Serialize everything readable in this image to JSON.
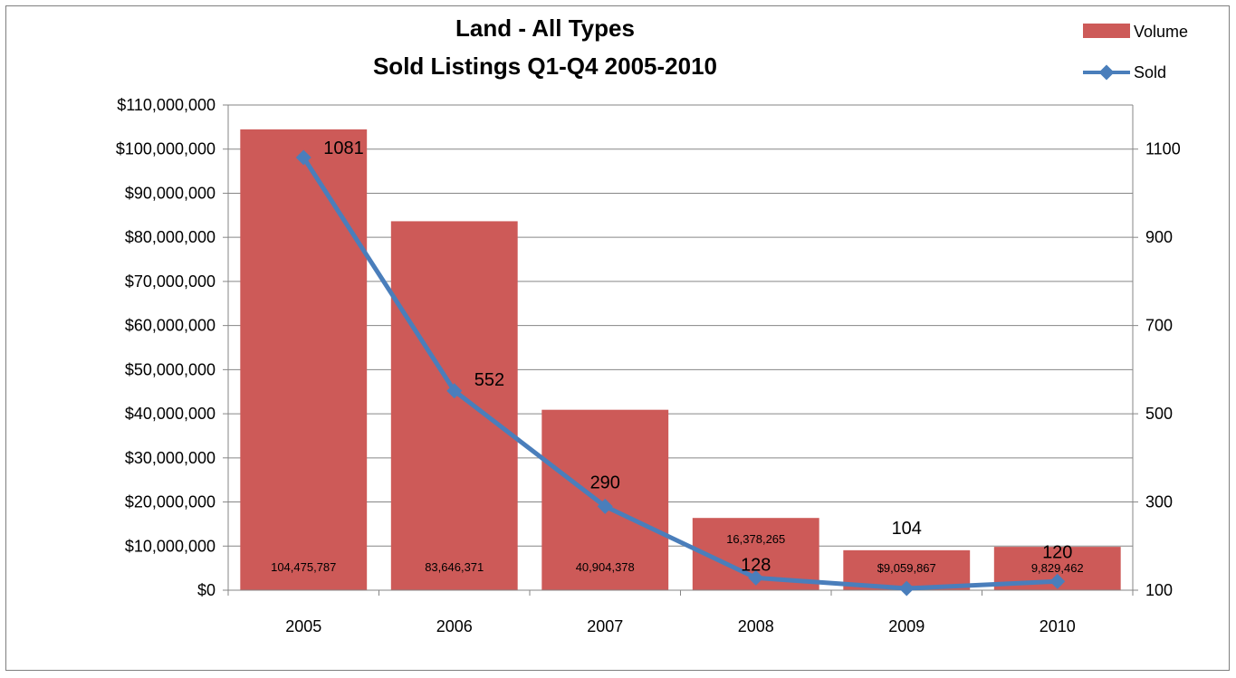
{
  "chart_data": {
    "type": "bar+line",
    "title_lines": [
      "Land - All Types",
      "Sold Listings Q1-Q4 2005-2010"
    ],
    "categories": [
      "2005",
      "2006",
      "2007",
      "2008",
      "2009",
      "2010"
    ],
    "series": [
      {
        "name": "Volume",
        "type": "bar",
        "axis": "left",
        "color": "#cd5a58",
        "values": [
          104475787,
          83646371,
          40904378,
          16378265,
          9059867,
          9829462
        ],
        "data_labels": [
          "104,475,787",
          "83,646,371",
          "40,904,378",
          "16,378,265",
          "$9,059,867",
          "9,829,462"
        ]
      },
      {
        "name": "Sold",
        "type": "line",
        "axis": "right",
        "color": "#4a7ebb",
        "values": [
          1081,
          552,
          290,
          128,
          104,
          120
        ],
        "data_labels": [
          "1081",
          "552",
          "290",
          "128",
          "104",
          "120"
        ]
      }
    ],
    "y_left": {
      "min": 0,
      "max": 110000000,
      "ticks": [
        0,
        10000000,
        20000000,
        30000000,
        40000000,
        50000000,
        60000000,
        70000000,
        80000000,
        90000000,
        100000000,
        110000000
      ],
      "tick_labels": [
        "$0",
        "$10,000,000",
        "$20,000,000",
        "$30,000,000",
        "$40,000,000",
        "$50,000,000",
        "$60,000,000",
        "$70,000,000",
        "$80,000,000",
        "$90,000,000",
        "$100,000,000",
        "$110,000,000"
      ]
    },
    "y_right": {
      "min": 100,
      "max": 1200,
      "ticks": [
        100,
        300,
        500,
        700,
        900,
        1100
      ],
      "tick_labels": [
        "100",
        "300",
        "500",
        "700",
        "900",
        "1100"
      ]
    },
    "grid": true,
    "legend": "top-right"
  }
}
